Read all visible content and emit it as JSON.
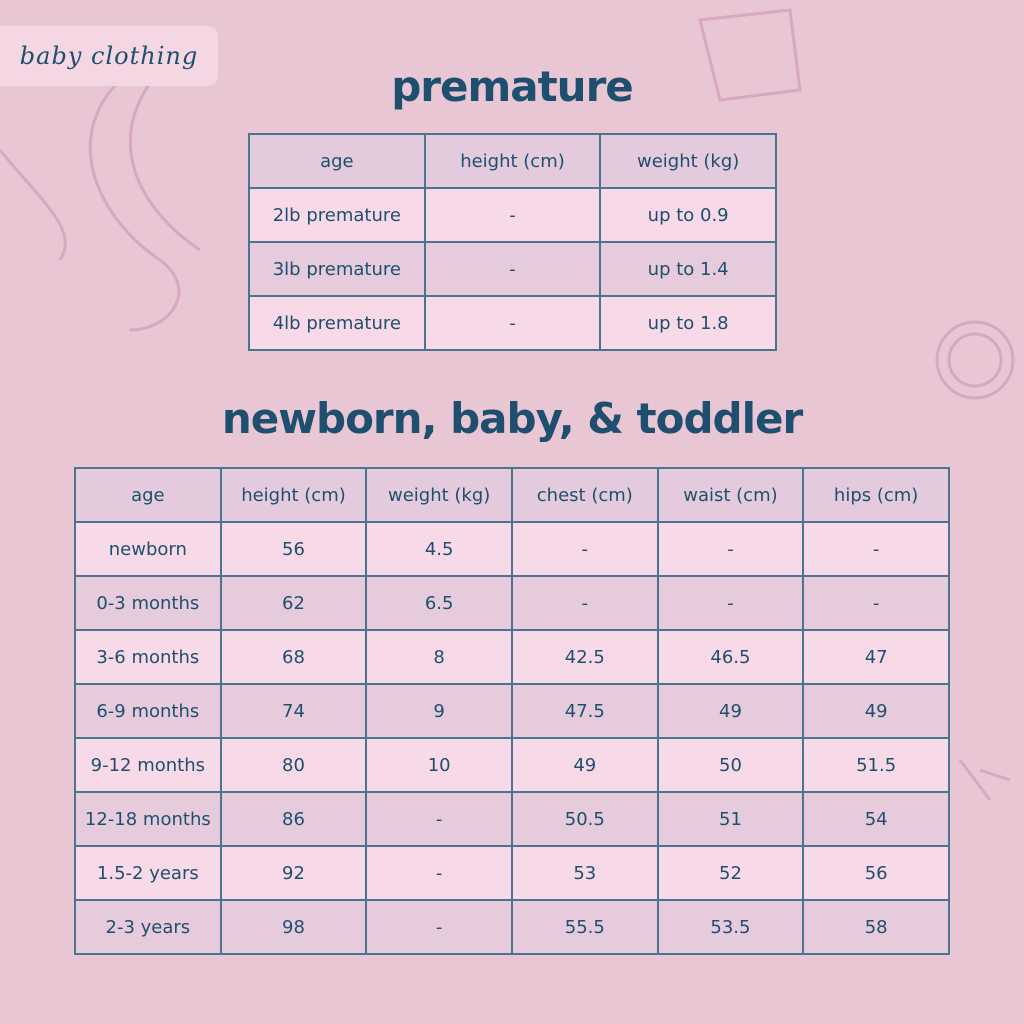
{
  "tag": "baby clothing",
  "premature": {
    "title": "premature",
    "headers": [
      "age",
      "height (cm)",
      "weight (kg)"
    ],
    "rows": [
      [
        "2lb premature",
        "-",
        "up to 0.9"
      ],
      [
        "3lb premature",
        "-",
        "up to 1.4"
      ],
      [
        "4lb premature",
        "-",
        "up to 1.8"
      ]
    ]
  },
  "newborn": {
    "title": "newborn, baby, & toddler",
    "headers": [
      "age",
      "height (cm)",
      "weight (kg)",
      "chest (cm)",
      "waist (cm)",
      "hips (cm)"
    ],
    "rows": [
      [
        "newborn",
        "56",
        "4.5",
        "-",
        "-",
        "-"
      ],
      [
        "0-3 months",
        "62",
        "6.5",
        "-",
        "-",
        "-"
      ],
      [
        "3-6 months",
        "68",
        "8",
        "42.5",
        "46.5",
        "47"
      ],
      [
        "6-9 months",
        "74",
        "9",
        "47.5",
        "49",
        "49"
      ],
      [
        "9-12 months",
        "80",
        "10",
        "49",
        "50",
        "51.5"
      ],
      [
        "12-18 months",
        "86",
        "-",
        "50.5",
        "51",
        "54"
      ],
      [
        "1.5-2 years",
        "92",
        "-",
        "53",
        "52",
        "56"
      ],
      [
        "2-3 years",
        "98",
        "-",
        "55.5",
        "53.5",
        "58"
      ]
    ]
  },
  "colors": {
    "background": "#e9c6d4",
    "text": "#1f4f6e",
    "border": "#4a7590",
    "row_light": "#f7d9e7",
    "row_dark": "#e6cbdd"
  }
}
